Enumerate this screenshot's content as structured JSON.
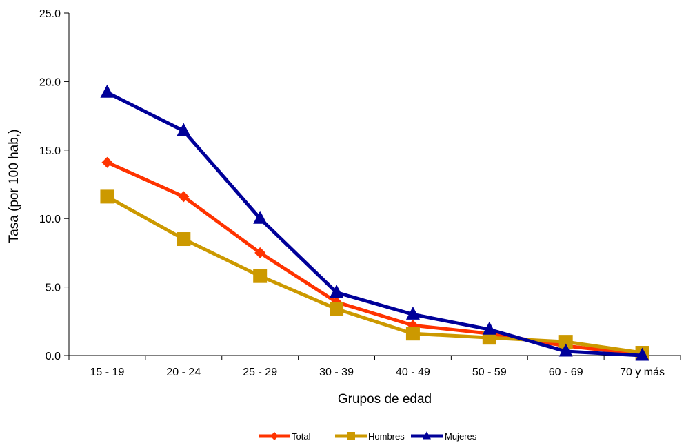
{
  "chart_data": {
    "type": "line",
    "title": "",
    "xlabel": "Grupos de edad",
    "ylabel": "Tasa (por 100 hab,)",
    "categories": [
      "15 - 19",
      "20 - 24",
      "25 - 29",
      "30 - 39",
      "40 - 49",
      "50 - 59",
      "60 - 69",
      "70 y más"
    ],
    "ylim": [
      0,
      25
    ],
    "yticks": [
      "0.0",
      "5.0",
      "10.0",
      "15.0",
      "20.0",
      "25.0"
    ],
    "grid": false,
    "legend_position": "bottom",
    "series": [
      {
        "name": "Total",
        "color": "#ff3300",
        "marker": "diamond",
        "values": [
          14.1,
          11.6,
          7.5,
          3.9,
          2.2,
          1.6,
          0.7,
          0.1
        ]
      },
      {
        "name": "Hombres",
        "color": "#cc9900",
        "marker": "square",
        "values": [
          11.6,
          8.5,
          5.8,
          3.4,
          1.6,
          1.3,
          1.0,
          0.2
        ]
      },
      {
        "name": "Mujeres",
        "color": "#000099",
        "marker": "triangle",
        "values": [
          19.2,
          16.4,
          10.0,
          4.6,
          3.0,
          1.9,
          0.3,
          0.0
        ]
      }
    ]
  }
}
